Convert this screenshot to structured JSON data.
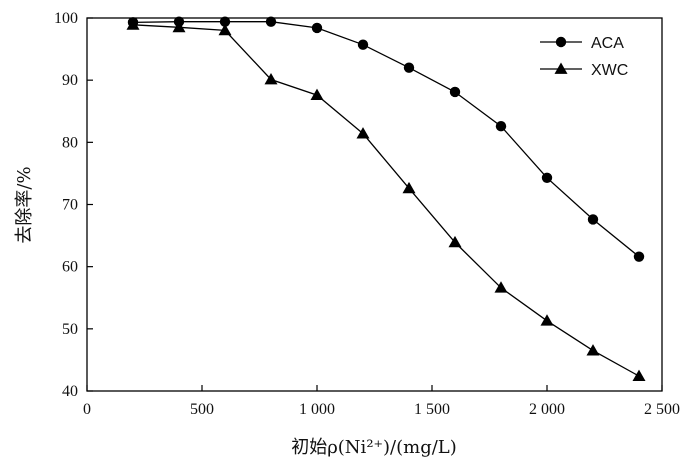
{
  "chart_data": {
    "type": "line",
    "xlabel": "初始ρ(Ni²⁺)/(mg/L)",
    "ylabel": "去除率/%",
    "xlim": [
      0,
      2500
    ],
    "ylim": [
      40,
      100
    ],
    "x_ticks": [
      0,
      500,
      1000,
      1500,
      2000,
      2500
    ],
    "x_tick_labels": [
      "0",
      "500",
      "1 000",
      "1 500",
      "2 000",
      "2 500"
    ],
    "y_ticks": [
      40,
      50,
      60,
      70,
      80,
      90,
      100
    ],
    "y_tick_labels": [
      "40",
      "50",
      "60",
      "70",
      "80",
      "90",
      "100"
    ],
    "grid": false,
    "legend_position": "top-right",
    "x": [
      200,
      400,
      600,
      800,
      1000,
      1200,
      1400,
      1600,
      1800,
      2000,
      2200,
      2400
    ],
    "series": [
      {
        "name": "ACA",
        "marker": "circle",
        "values": [
          99.3,
          99.4,
          99.4,
          99.4,
          98.4,
          95.7,
          92.0,
          88.1,
          82.6,
          74.3,
          67.6,
          61.6
        ]
      },
      {
        "name": "XWC",
        "marker": "triangle",
        "values": [
          98.9,
          98.5,
          98.0,
          90.1,
          87.6,
          81.4,
          72.6,
          63.9,
          56.6,
          51.3,
          46.5,
          42.4
        ]
      }
    ]
  }
}
